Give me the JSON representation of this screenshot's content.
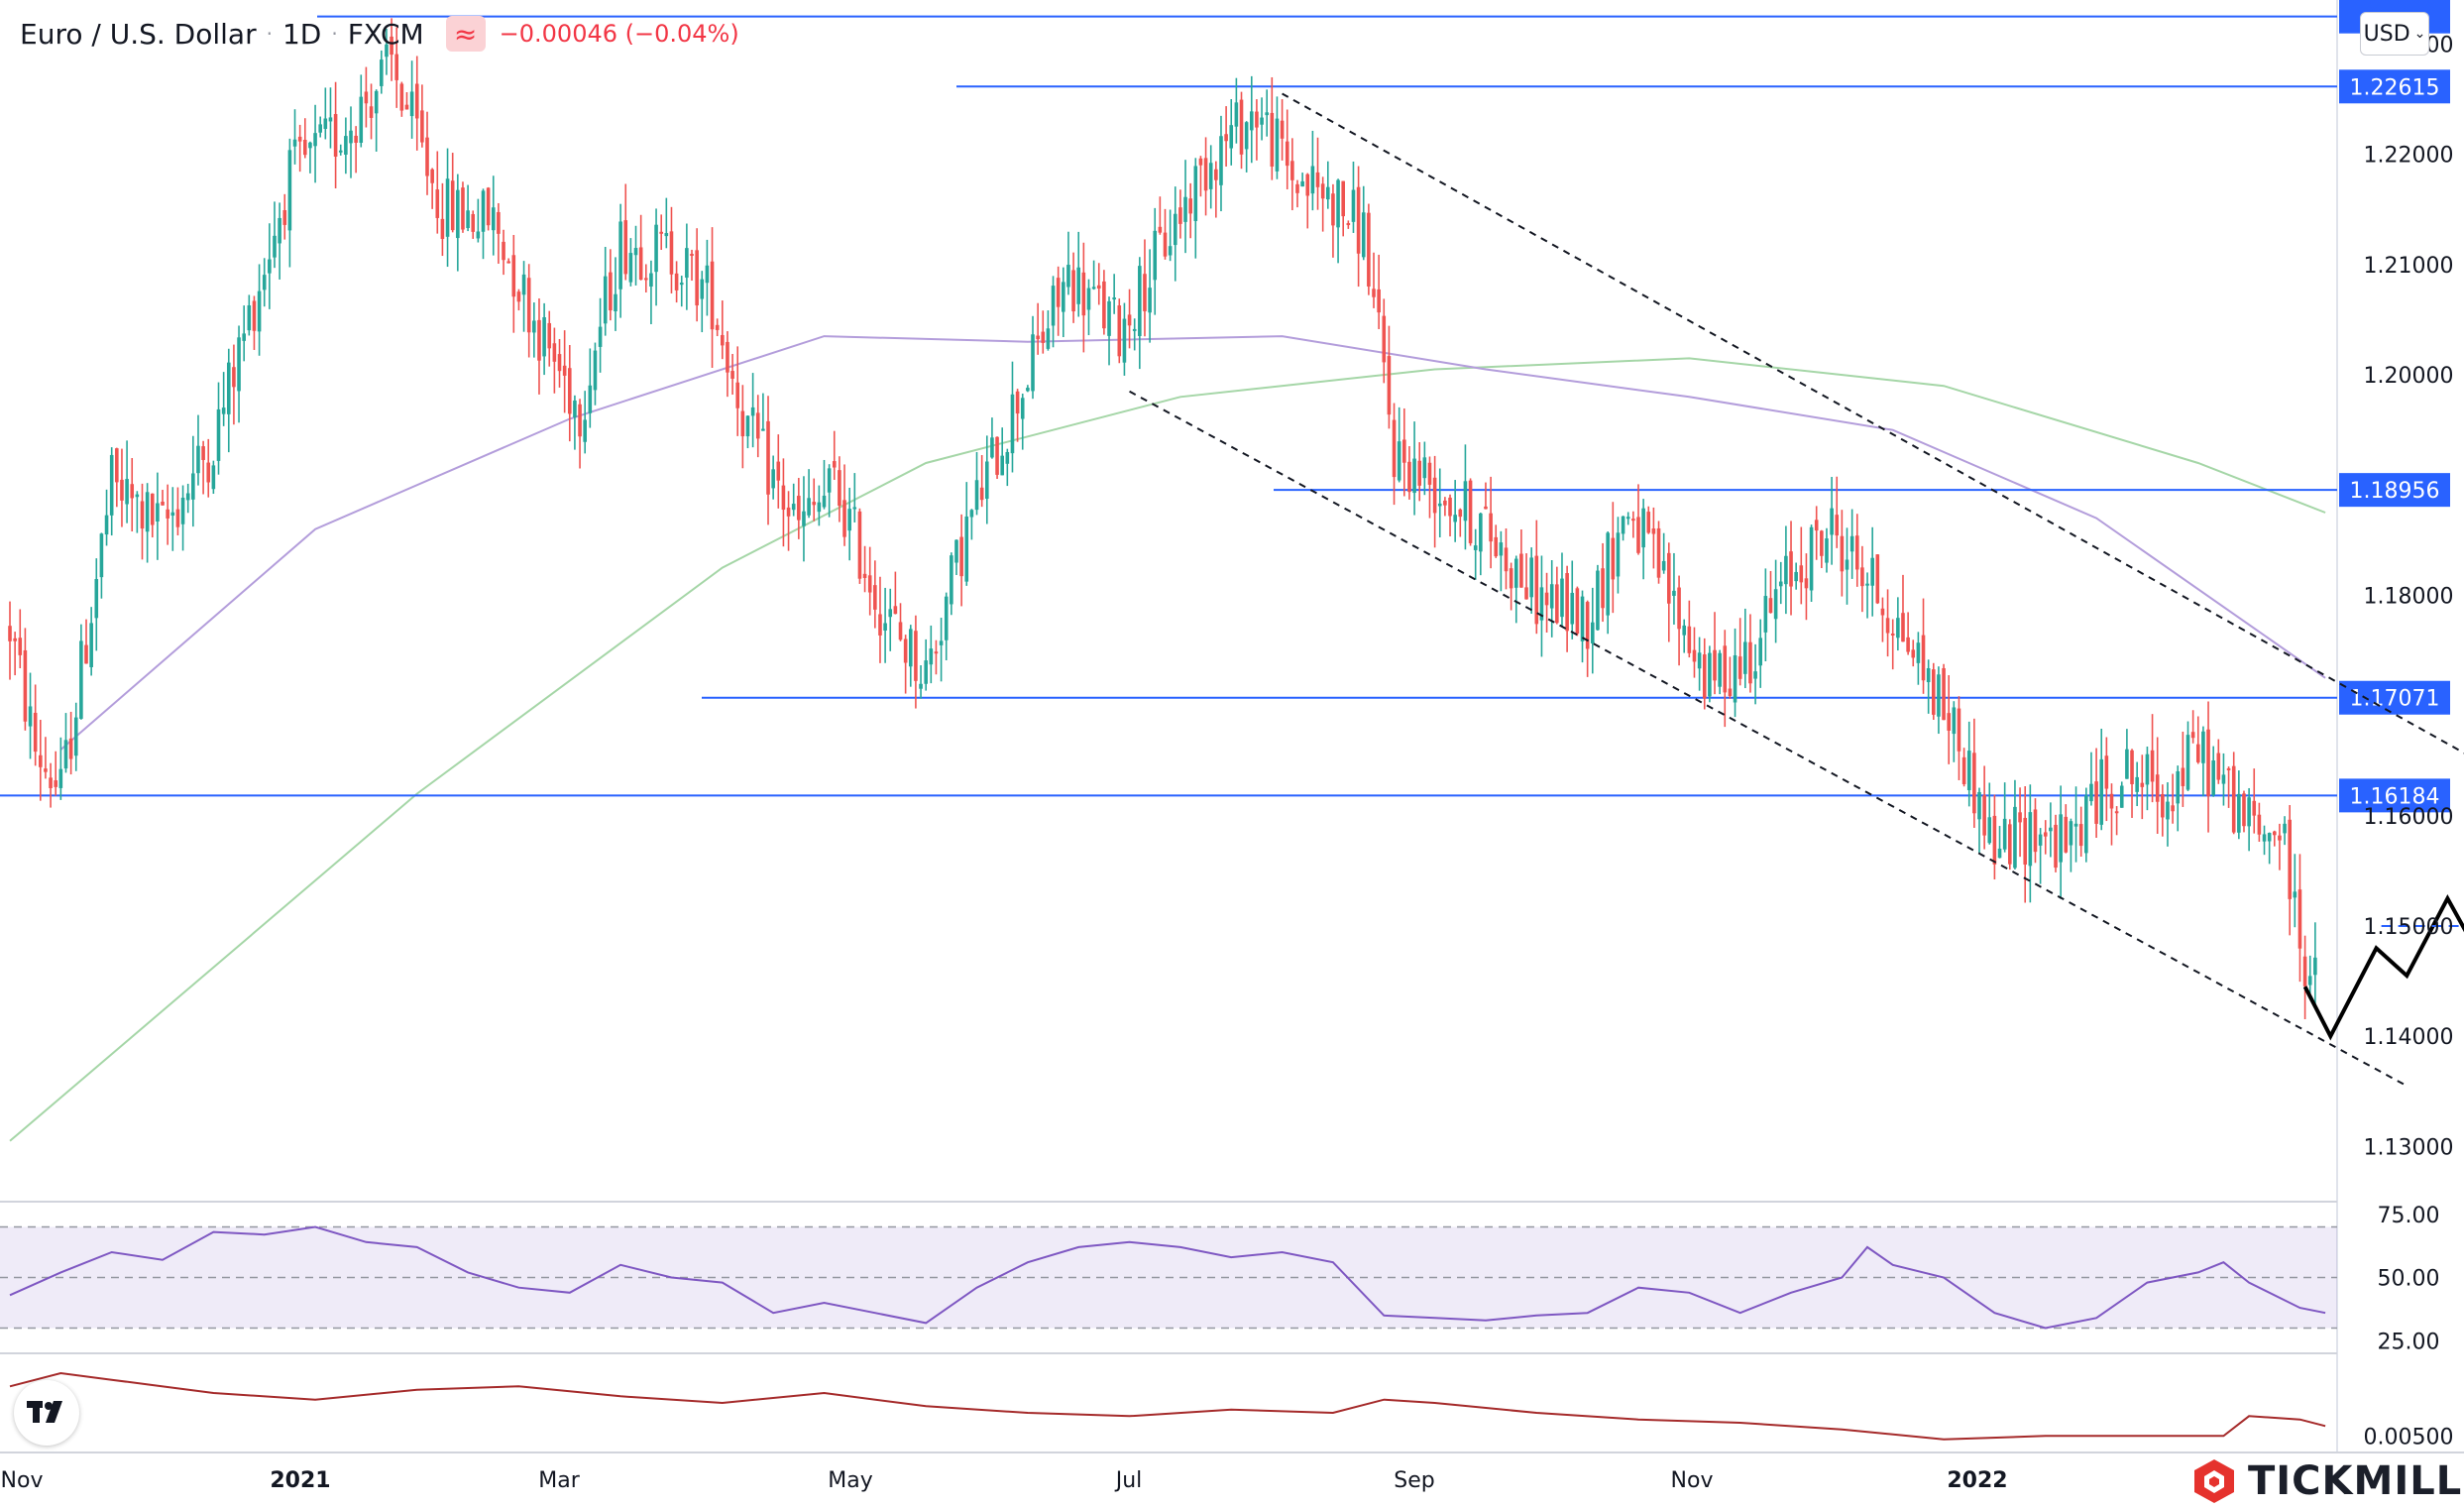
{
  "header": {
    "symbol": "Euro / U.S. Dollar",
    "interval": "1D",
    "source": "FXCM",
    "change": "−0.00046 (−0.04%)",
    "currency": "USD",
    "indicator_icon": "approx-equal-icon"
  },
  "brand": {
    "name": "TICKMILL",
    "logo_icon": "tickmill-hexagon-icon",
    "tv_logo": "tradingview-logo-icon"
  },
  "colors": {
    "up": "#26a69a",
    "down": "#ef5350",
    "level": "#2962ff",
    "ma_slow": "#a5d6a7",
    "ma_fast": "#b39ddb",
    "rsi": "#7e57c2",
    "osc": "#a52a2a"
  },
  "chart_data": {
    "type": "candlestick",
    "x_labels": [
      "Nov",
      "2021",
      "Mar",
      "May",
      "Jul",
      "Sep",
      "Nov",
      "2022"
    ],
    "y_ticks": [
      "1.23000",
      "1.22000",
      "1.21000",
      "1.20000",
      "1.18000",
      "1.16000",
      "1.15000",
      "1.14000",
      "1.13000"
    ],
    "ylim": [
      1.125,
      1.234
    ],
    "levels": [
      {
        "label": "",
        "value": 1.2325
      },
      {
        "label": "1.22615",
        "value": 1.22615
      },
      {
        "label": "1.18956",
        "value": 1.18956
      },
      {
        "label": "1.17071",
        "value": 1.17071
      },
      {
        "label": "1.16184",
        "value": 1.16184
      }
    ],
    "anchors": [
      [
        0,
        1.177
      ],
      [
        5,
        1.166
      ],
      [
        10,
        1.162
      ],
      [
        20,
        1.19
      ],
      [
        30,
        1.186
      ],
      [
        40,
        1.194
      ],
      [
        55,
        1.218
      ],
      [
        65,
        1.222
      ],
      [
        75,
        1.228
      ],
      [
        85,
        1.215
      ],
      [
        95,
        1.214
      ],
      [
        105,
        1.203
      ],
      [
        112,
        1.197
      ],
      [
        120,
        1.212
      ],
      [
        130,
        1.211
      ],
      [
        138,
        1.207
      ],
      [
        145,
        1.195
      ],
      [
        155,
        1.186
      ],
      [
        162,
        1.19
      ],
      [
        172,
        1.178
      ],
      [
        180,
        1.173
      ],
      [
        188,
        1.186
      ],
      [
        198,
        1.198
      ],
      [
        208,
        1.209
      ],
      [
        218,
        1.204
      ],
      [
        228,
        1.213
      ],
      [
        236,
        1.22
      ],
      [
        245,
        1.224
      ],
      [
        252,
        1.218
      ],
      [
        260,
        1.216
      ],
      [
        266,
        1.213
      ],
      [
        272,
        1.193
      ],
      [
        280,
        1.19
      ],
      [
        290,
        1.186
      ],
      [
        300,
        1.18
      ],
      [
        310,
        1.178
      ],
      [
        318,
        1.188
      ],
      [
        326,
        1.18
      ],
      [
        334,
        1.172
      ],
      [
        342,
        1.175
      ],
      [
        350,
        1.182
      ],
      [
        358,
        1.186
      ],
      [
        366,
        1.181
      ],
      [
        374,
        1.175
      ],
      [
        382,
        1.168
      ],
      [
        390,
        1.157
      ],
      [
        398,
        1.159
      ],
      [
        404,
        1.157
      ],
      [
        410,
        1.162
      ],
      [
        416,
        1.164
      ],
      [
        424,
        1.162
      ],
      [
        430,
        1.166
      ],
      [
        436,
        1.162
      ],
      [
        442,
        1.158
      ],
      [
        446,
        1.159
      ],
      [
        451,
        1.147
      ],
      [
        453,
        1.1445
      ]
    ],
    "channel_upper": [
      [
        250,
        1.2255
      ],
      [
        518,
        1.1565
      ]
    ],
    "channel_lower": [
      [
        220,
        1.1985
      ],
      [
        471,
        1.1355
      ]
    ],
    "projection": [
      [
        451,
        1.1445
      ],
      [
        456,
        1.14
      ],
      [
        465,
        1.148
      ],
      [
        471,
        1.1455
      ],
      [
        479,
        1.1525
      ],
      [
        485,
        1.1475
      ],
      [
        490,
        1.1495
      ]
    ],
    "target_level": 1.15,
    "ma_slow": [
      [
        0,
        1.1305
      ],
      [
        80,
        1.162
      ],
      [
        140,
        1.1825
      ],
      [
        180,
        1.192
      ],
      [
        230,
        1.198
      ],
      [
        280,
        1.2005
      ],
      [
        330,
        1.2015
      ],
      [
        380,
        1.199
      ],
      [
        430,
        1.192
      ],
      [
        455,
        1.1875
      ]
    ],
    "ma_fast": [
      [
        10,
        1.166
      ],
      [
        60,
        1.186
      ],
      [
        110,
        1.196
      ],
      [
        160,
        1.2035
      ],
      [
        200,
        1.203
      ],
      [
        250,
        1.2035
      ],
      [
        290,
        1.2005
      ],
      [
        330,
        1.198
      ],
      [
        370,
        1.195
      ],
      [
        410,
        1.187
      ],
      [
        455,
        1.1725
      ]
    ],
    "rsi": {
      "ticks": [
        "75.00",
        "50.00",
        "25.00"
      ],
      "ylim": [
        20,
        80
      ],
      "band": [
        30,
        70
      ],
      "mid": 50,
      "points": [
        [
          0,
          43
        ],
        [
          10,
          52
        ],
        [
          20,
          60
        ],
        [
          30,
          57
        ],
        [
          40,
          68
        ],
        [
          50,
          67
        ],
        [
          60,
          70
        ],
        [
          70,
          64
        ],
        [
          80,
          62
        ],
        [
          90,
          52
        ],
        [
          100,
          46
        ],
        [
          110,
          44
        ],
        [
          120,
          55
        ],
        [
          130,
          50
        ],
        [
          140,
          48
        ],
        [
          150,
          36
        ],
        [
          160,
          40
        ],
        [
          170,
          36
        ],
        [
          180,
          32
        ],
        [
          190,
          46
        ],
        [
          200,
          56
        ],
        [
          210,
          62
        ],
        [
          220,
          64
        ],
        [
          230,
          62
        ],
        [
          240,
          58
        ],
        [
          250,
          60
        ],
        [
          260,
          56
        ],
        [
          270,
          35
        ],
        [
          280,
          34
        ],
        [
          290,
          33
        ],
        [
          300,
          35
        ],
        [
          310,
          36
        ],
        [
          320,
          46
        ],
        [
          330,
          44
        ],
        [
          340,
          36
        ],
        [
          350,
          44
        ],
        [
          360,
          50
        ],
        [
          365,
          62
        ],
        [
          370,
          55
        ],
        [
          380,
          50
        ],
        [
          390,
          36
        ],
        [
          400,
          30
        ],
        [
          410,
          34
        ],
        [
          420,
          48
        ],
        [
          430,
          52
        ],
        [
          435,
          56
        ],
        [
          440,
          48
        ],
        [
          450,
          38
        ],
        [
          455,
          36
        ]
      ]
    },
    "oscillator": {
      "ticks": [
        "0.00500"
      ],
      "ylim": [
        0,
        0.03
      ],
      "points": [
        [
          0,
          0.02
        ],
        [
          10,
          0.024
        ],
        [
          20,
          0.022
        ],
        [
          40,
          0.018
        ],
        [
          60,
          0.016
        ],
        [
          80,
          0.019
        ],
        [
          100,
          0.02
        ],
        [
          120,
          0.017
        ],
        [
          140,
          0.015
        ],
        [
          160,
          0.018
        ],
        [
          180,
          0.014
        ],
        [
          200,
          0.012
        ],
        [
          220,
          0.011
        ],
        [
          240,
          0.013
        ],
        [
          260,
          0.012
        ],
        [
          270,
          0.016
        ],
        [
          280,
          0.015
        ],
        [
          300,
          0.012
        ],
        [
          320,
          0.01
        ],
        [
          340,
          0.009
        ],
        [
          360,
          0.007
        ],
        [
          380,
          0.004
        ],
        [
          400,
          0.005
        ],
        [
          420,
          0.005
        ],
        [
          435,
          0.005
        ],
        [
          440,
          0.011
        ],
        [
          450,
          0.01
        ],
        [
          455,
          0.008
        ]
      ]
    }
  }
}
